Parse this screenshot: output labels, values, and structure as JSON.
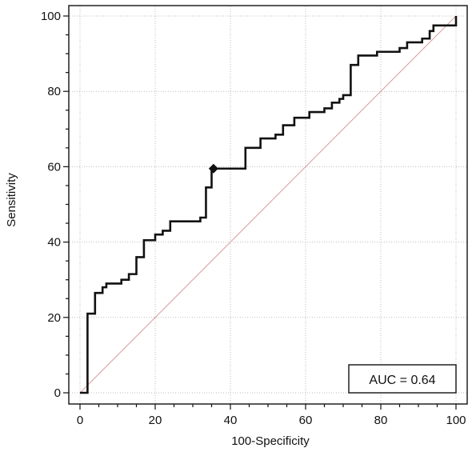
{
  "chart_data": {
    "type": "line",
    "title": "",
    "xlabel": "100-Specificity",
    "ylabel": "Sensitivity",
    "xlim": [
      0,
      100
    ],
    "ylim": [
      0,
      100
    ],
    "x_ticks": [
      "0",
      "20",
      "40",
      "60",
      "80",
      "100"
    ],
    "y_ticks": [
      "0",
      "20",
      "40",
      "60",
      "80",
      "100"
    ],
    "grid": true,
    "grid_style": "dotted",
    "annotation": "AUC = 0.64",
    "annotation_position": "bottom-right",
    "series": [
      {
        "color": "#111111",
        "step": true,
        "points": [
          [
            0,
            0
          ],
          [
            2,
            0
          ],
          [
            2,
            21
          ],
          [
            4,
            21
          ],
          [
            4,
            26.5
          ],
          [
            6,
            26.5
          ],
          [
            6,
            28
          ],
          [
            7,
            28
          ],
          [
            7,
            29
          ],
          [
            11,
            29
          ],
          [
            11,
            30
          ],
          [
            13,
            30
          ],
          [
            13,
            31.5
          ],
          [
            15,
            31.5
          ],
          [
            15,
            36
          ],
          [
            17,
            36
          ],
          [
            17,
            40.5
          ],
          [
            20,
            40.5
          ],
          [
            20,
            42
          ],
          [
            22,
            42
          ],
          [
            22,
            43
          ],
          [
            24,
            43
          ],
          [
            24,
            45.5
          ],
          [
            32,
            45.5
          ],
          [
            32,
            46.5
          ],
          [
            33.5,
            46.5
          ],
          [
            33.5,
            54.5
          ],
          [
            35,
            54.5
          ],
          [
            35,
            59.5
          ],
          [
            44,
            59.5
          ],
          [
            44,
            65
          ],
          [
            48,
            65
          ],
          [
            48,
            67.5
          ],
          [
            52,
            67.5
          ],
          [
            52,
            68.5
          ],
          [
            54,
            68.5
          ],
          [
            54,
            71
          ],
          [
            57,
            71
          ],
          [
            57,
            73
          ],
          [
            61,
            73
          ],
          [
            61,
            74.5
          ],
          [
            65,
            74.5
          ],
          [
            65,
            75.5
          ],
          [
            67,
            75.5
          ],
          [
            67,
            77
          ],
          [
            69,
            77
          ],
          [
            69,
            78
          ],
          [
            70,
            78
          ],
          [
            70,
            79
          ],
          [
            72,
            79
          ],
          [
            72,
            87
          ],
          [
            74,
            87
          ],
          [
            74,
            89.5
          ],
          [
            79,
            89.5
          ],
          [
            79,
            90.5
          ],
          [
            85,
            90.5
          ],
          [
            85,
            91.5
          ],
          [
            87,
            91.5
          ],
          [
            87,
            93
          ],
          [
            91,
            93
          ],
          [
            91,
            94
          ],
          [
            93,
            94
          ],
          [
            93,
            96
          ],
          [
            94,
            96
          ],
          [
            94,
            97.5
          ],
          [
            100,
            97.5
          ],
          [
            100,
            100
          ]
        ]
      },
      {
        "color": "#d9a3a8",
        "points": [
          [
            0,
            0
          ],
          [
            100,
            100
          ]
        ]
      }
    ],
    "marker": {
      "x": 35.5,
      "y": 59.5,
      "shape": "diamond"
    }
  }
}
